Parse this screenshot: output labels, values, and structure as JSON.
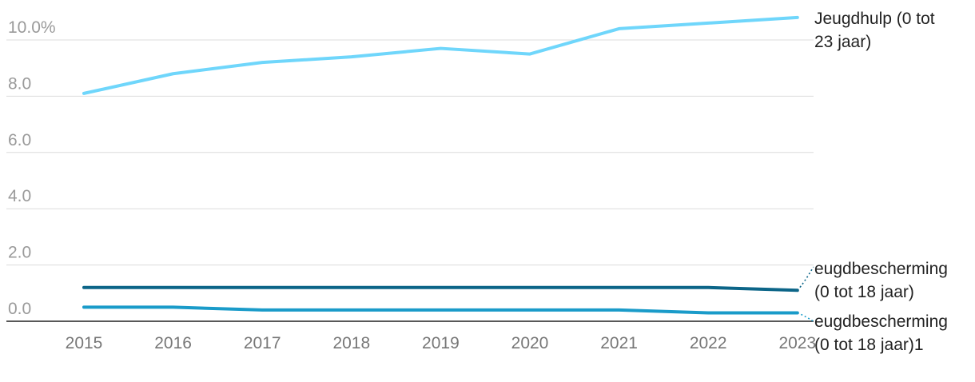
{
  "chart_data": {
    "type": "line",
    "x": [
      "2015",
      "2016",
      "2017",
      "2018",
      "2019",
      "2020",
      "2021",
      "2022",
      "2023"
    ],
    "ylim": [
      0,
      10.8
    ],
    "y_ticks": [
      "0.0",
      "2.0",
      "4.0",
      "6.0",
      "8.0",
      "10.0%"
    ],
    "y_tick_values": [
      0,
      2,
      4,
      6,
      8,
      10
    ],
    "grid": true,
    "legend": "direct labels at line ends (right)",
    "series": [
      {
        "name": "Jeugdhulp (0 tot 23 jaar)",
        "label_lines": [
          "Jeugdhulp (0 tot",
          "23 jaar)"
        ],
        "color": "#6fd6fb",
        "values": [
          8.1,
          8.8,
          9.2,
          9.4,
          9.7,
          9.5,
          10.4,
          10.6,
          10.8
        ]
      },
      {
        "name": "eugdbescherming (0 tot 18 jaar)",
        "label_lines": [
          "eugdbescherming",
          "(0 tot 18 jaar)"
        ],
        "color": "#0c6588",
        "values": [
          1.2,
          1.2,
          1.2,
          1.2,
          1.2,
          1.2,
          1.2,
          1.2,
          1.1
        ]
      },
      {
        "name": "eugdbescherming (0 tot 18 jaar)1",
        "label_lines": [
          "eugdbescherming",
          "(0 tot 18 jaar)1"
        ],
        "color": "#1a9bc9",
        "values": [
          0.5,
          0.5,
          0.4,
          0.4,
          0.4,
          0.4,
          0.4,
          0.3,
          0.3
        ]
      }
    ]
  }
}
